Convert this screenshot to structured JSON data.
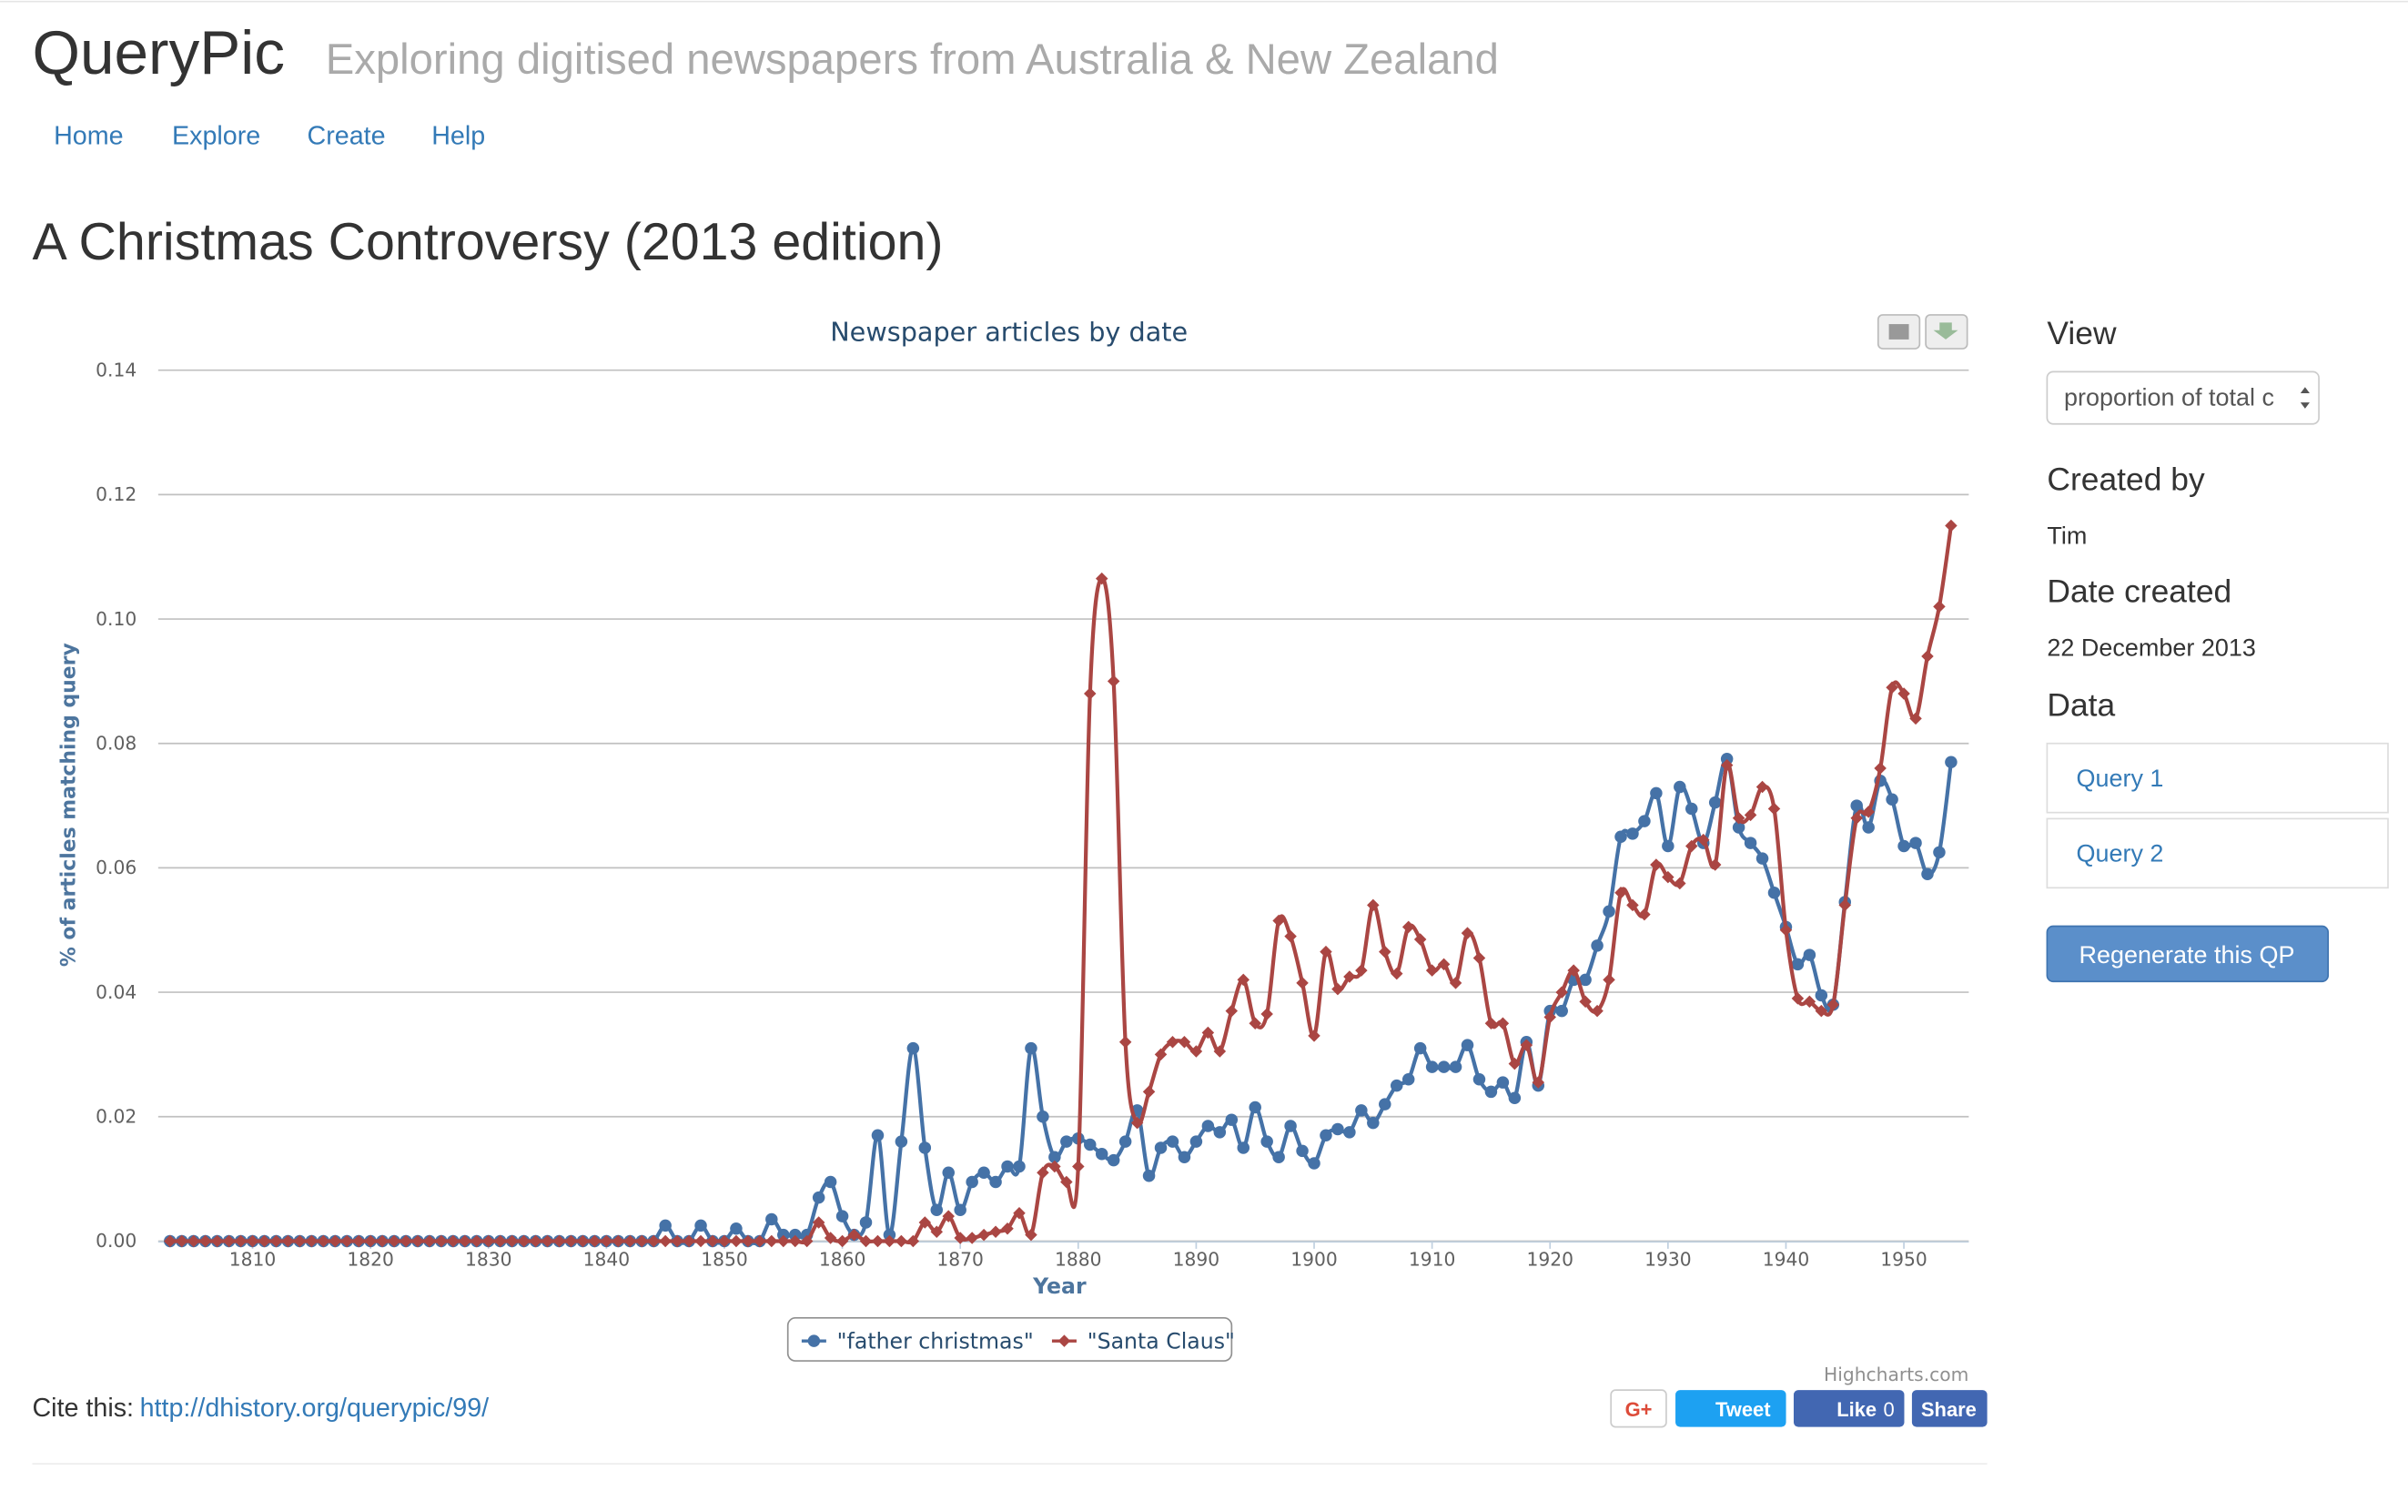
{
  "header": {
    "brand": "QueryPic",
    "tagline": "Exploring digitised newspapers from Australia & New Zealand"
  },
  "nav": [
    "Home",
    "Explore",
    "Create",
    "Help"
  ],
  "page_title": "A Christmas Controversy (2013 edition)",
  "sidebar": {
    "view_label": "View",
    "view_select": "proportion of total c",
    "created_by_label": "Created by",
    "created_by": "Tim",
    "date_label": "Date created",
    "date": "22 December 2013",
    "data_label": "Data",
    "queries": [
      "Query 1",
      "Query 2"
    ],
    "button": "Regenerate this QP"
  },
  "cite": {
    "label": "Cite this:",
    "url": "http://dhistory.org/querypic/99/"
  },
  "social": {
    "gplus": "G+",
    "tweet": "Tweet",
    "like": "Like",
    "like_count": "0",
    "share": "Share"
  },
  "credits": "Highcharts.com",
  "chart_data": {
    "type": "line",
    "title": "Newspaper articles by date",
    "x_label": "Year",
    "y_label": "% of articles matching query",
    "xlim": [
      1802,
      1955.5
    ],
    "xticks": [
      1810,
      1820,
      1830,
      1840,
      1850,
      1860,
      1870,
      1880,
      1890,
      1900,
      1910,
      1920,
      1930,
      1940,
      1950
    ],
    "ylim": [
      0,
      0.14
    ],
    "yticks": [
      {
        "value": 0,
        "label": "0.00"
      },
      {
        "value": 0.02,
        "label": "0.02"
      },
      {
        "value": 0.04,
        "label": "0.04"
      },
      {
        "value": 0.06,
        "label": "0.06"
      },
      {
        "value": 0.08,
        "label": "0.08"
      },
      {
        "value": 0.1,
        "label": "0.10"
      },
      {
        "value": 0.12,
        "label": "0.12"
      },
      {
        "value": 0.14,
        "label": "0.14"
      }
    ],
    "grid": true,
    "x": [
      1803,
      1804,
      1805,
      1806,
      1807,
      1808,
      1809,
      1810,
      1811,
      1812,
      1813,
      1814,
      1815,
      1816,
      1817,
      1818,
      1819,
      1820,
      1821,
      1822,
      1823,
      1824,
      1825,
      1826,
      1827,
      1828,
      1829,
      1830,
      1831,
      1832,
      1833,
      1834,
      1835,
      1836,
      1837,
      1838,
      1839,
      1840,
      1841,
      1842,
      1843,
      1844,
      1845,
      1846,
      1847,
      1848,
      1849,
      1850,
      1851,
      1852,
      1853,
      1854,
      1855,
      1856,
      1857,
      1858,
      1859,
      1860,
      1861,
      1862,
      1863,
      1864,
      1865,
      1866,
      1867,
      1868,
      1869,
      1870,
      1871,
      1872,
      1873,
      1874,
      1875,
      1876,
      1877,
      1878,
      1879,
      1880,
      1881,
      1882,
      1883,
      1884,
      1885,
      1886,
      1887,
      1888,
      1889,
      1890,
      1891,
      1892,
      1893,
      1894,
      1895,
      1896,
      1897,
      1898,
      1899,
      1900,
      1901,
      1902,
      1903,
      1904,
      1905,
      1906,
      1907,
      1908,
      1909,
      1910,
      1911,
      1912,
      1913,
      1914,
      1915,
      1916,
      1917,
      1918,
      1919,
      1920,
      1921,
      1922,
      1923,
      1924,
      1925,
      1926,
      1927,
      1928,
      1929,
      1930,
      1931,
      1932,
      1933,
      1934,
      1935,
      1936,
      1937,
      1938,
      1939,
      1940,
      1941,
      1942,
      1943,
      1944,
      1945,
      1946,
      1947,
      1948,
      1949,
      1950,
      1951,
      1952,
      1953,
      1954
    ],
    "series": [
      {
        "name": "\"father christmas\"",
        "color": "#4572a7",
        "marker": "circle",
        "values": [
          0,
          0,
          0,
          0,
          0,
          0,
          0,
          0,
          0,
          0,
          0,
          0,
          0,
          0,
          0,
          0,
          0,
          0,
          0,
          0,
          0,
          0,
          0,
          0,
          0,
          0,
          0,
          0,
          0,
          0,
          0,
          0,
          0,
          0,
          0,
          0,
          0,
          0,
          0,
          0,
          0,
          0,
          0.0025,
          0,
          0,
          0.0025,
          0,
          0,
          0.002,
          0,
          0,
          0.0035,
          0.001,
          0.001,
          0.001,
          0.007,
          0.0095,
          0.004,
          0.001,
          0.003,
          0.017,
          0.001,
          0.016,
          0.031,
          0.015,
          0.005,
          0.011,
          0.005,
          0.0095,
          0.011,
          0.0095,
          0.012,
          0.012,
          0.031,
          0.02,
          0.0135,
          0.016,
          0.0165,
          0.0155,
          0.014,
          0.013,
          0.016,
          0.021,
          0.0105,
          0.015,
          0.016,
          0.0135,
          0.016,
          0.0185,
          0.0175,
          0.0195,
          0.015,
          0.0215,
          0.016,
          0.0135,
          0.0185,
          0.0145,
          0.0125,
          0.017,
          0.018,
          0.0175,
          0.021,
          0.019,
          0.022,
          0.025,
          0.026,
          0.031,
          0.028,
          0.028,
          0.028,
          0.0315,
          0.026,
          0.024,
          0.0255,
          0.023,
          0.032,
          0.025,
          0.037,
          0.037,
          0.042,
          0.042,
          0.0475,
          0.053,
          0.065,
          0.0655,
          0.0675,
          0.072,
          0.0635,
          0.073,
          0.0695,
          0.064,
          0.0705,
          0.0775,
          0.0665,
          0.064,
          0.0615,
          0.056,
          0.0505,
          0.0445,
          0.046,
          0.0395,
          0.038,
          0.0545,
          0.07,
          0.0665,
          0.074,
          0.071,
          0.0635,
          0.064,
          0.059,
          0.0625,
          0.077
        ]
      },
      {
        "name": "\"Santa Claus\"",
        "color": "#aa4643",
        "marker": "diamond",
        "values": [
          0,
          0,
          0,
          0,
          0,
          0,
          0,
          0,
          0,
          0,
          0,
          0,
          0,
          0,
          0,
          0,
          0,
          0,
          0,
          0,
          0,
          0,
          0,
          0,
          0,
          0,
          0,
          0,
          0,
          0,
          0,
          0,
          0,
          0,
          0,
          0,
          0,
          0,
          0,
          0,
          0,
          0,
          0,
          0,
          0,
          0,
          0,
          0,
          0,
          0,
          0,
          0,
          0,
          0,
          0,
          0.003,
          0.0005,
          0,
          0.001,
          0,
          0,
          0,
          0,
          0,
          0.003,
          0.0015,
          0.004,
          0.0005,
          0.0005,
          0.001,
          0.0015,
          0.002,
          0.0045,
          0.001,
          0.011,
          0.012,
          0.0095,
          0.012,
          0.088,
          0.1065,
          0.09,
          0.032,
          0.019,
          0.024,
          0.03,
          0.032,
          0.032,
          0.0305,
          0.0335,
          0.0305,
          0.037,
          0.042,
          0.035,
          0.0365,
          0.0515,
          0.049,
          0.0415,
          0.033,
          0.0465,
          0.0405,
          0.0425,
          0.0435,
          0.054,
          0.0465,
          0.043,
          0.0505,
          0.0485,
          0.0435,
          0.0445,
          0.0415,
          0.0495,
          0.0455,
          0.035,
          0.035,
          0.0285,
          0.0315,
          0.0255,
          0.036,
          0.04,
          0.0435,
          0.0385,
          0.037,
          0.042,
          0.056,
          0.054,
          0.0525,
          0.0605,
          0.0585,
          0.0575,
          0.0635,
          0.0645,
          0.0605,
          0.0765,
          0.068,
          0.0685,
          0.073,
          0.0695,
          0.05,
          0.039,
          0.0385,
          0.037,
          0.038,
          0.054,
          0.068,
          0.069,
          0.076,
          0.089,
          0.088,
          0.084,
          0.094,
          0.102,
          0.115
        ]
      }
    ]
  }
}
